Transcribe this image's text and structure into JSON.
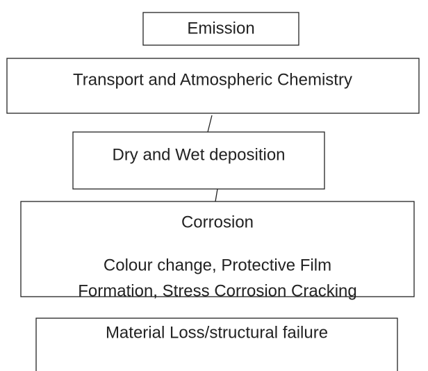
{
  "nodes": [
    {
      "label": "Emission"
    },
    {
      "label": "Transport and Atmospheric Chemistry"
    },
    {
      "label": "Dry and Wet deposition"
    },
    {
      "label": "Corrosion",
      "details": [
        "Colour change, Protective Film",
        "Formation, Stress Corrosion Cracking"
      ]
    },
    {
      "label": "Material Loss/structural failure"
    }
  ]
}
